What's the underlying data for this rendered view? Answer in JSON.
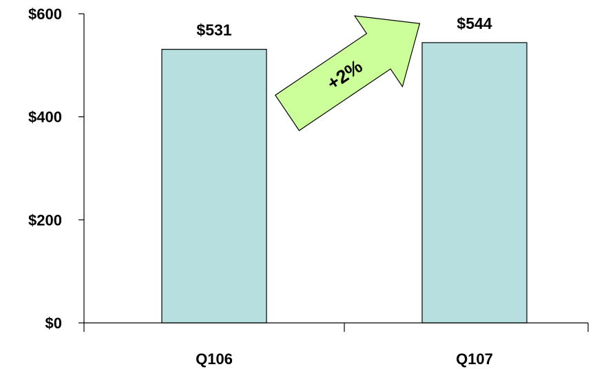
{
  "chart_data": {
    "type": "bar",
    "categories": [
      "Q106",
      "Q107"
    ],
    "values": [
      531,
      544
    ],
    "data_labels": [
      "$531",
      "$544"
    ],
    "title": "",
    "xlabel": "",
    "ylabel": "",
    "ylim": [
      0,
      600
    ],
    "y_ticks": [
      {
        "value": 0,
        "label": "$0"
      },
      {
        "value": 200,
        "label": "$200"
      },
      {
        "value": 400,
        "label": "$400"
      },
      {
        "value": 600,
        "label": "$600"
      }
    ],
    "grid": false,
    "legend": "none",
    "bar_color": "#b8dfe0",
    "annotation": {
      "text": "+2%",
      "shape": "arrow",
      "color": "#ccff99"
    }
  }
}
